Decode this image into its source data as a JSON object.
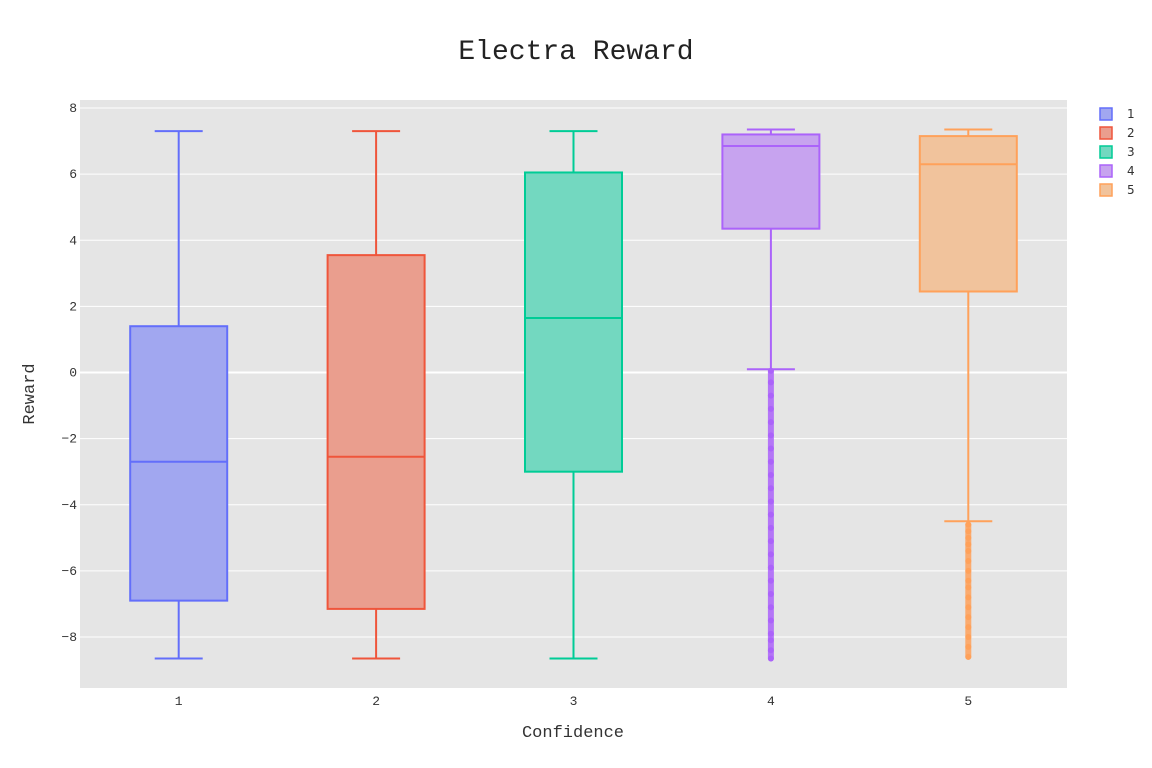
{
  "chart_data": {
    "type": "box",
    "title": "Electra Reward",
    "xlabel": "Confidence",
    "ylabel": "Reward",
    "ylim": [
      -9.5,
      8.2
    ],
    "yticks": [
      8,
      6,
      4,
      2,
      0,
      -2,
      -4,
      -6,
      -8
    ],
    "ytick_labels": [
      "8",
      "6",
      "4",
      "2",
      "0",
      "−2",
      "−4",
      "−6",
      "−8"
    ],
    "categories": [
      "1",
      "2",
      "3",
      "4",
      "5"
    ],
    "grid": true,
    "legend_position": "top-right",
    "series": [
      {
        "name": "1",
        "color": "#636efa",
        "fill": "#a1a7f0",
        "whisker_low": -8.65,
        "q1": -6.9,
        "median": -2.7,
        "q3": 1.4,
        "whisker_high": 7.3,
        "outliers": []
      },
      {
        "name": "2",
        "color": "#ef553b",
        "fill": "#ea9e8e",
        "whisker_low": -8.65,
        "q1": -7.15,
        "median": -2.55,
        "q3": 3.55,
        "whisker_high": 7.3,
        "outliers": []
      },
      {
        "name": "3",
        "color": "#00cc96",
        "fill": "#73d8c0",
        "whisker_low": -8.65,
        "q1": -3.0,
        "median": 1.65,
        "q3": 6.05,
        "whisker_high": 7.3,
        "outliers": []
      },
      {
        "name": "4",
        "color": "#ab63fa",
        "fill": "#c7a3ef",
        "whisker_low": 0.1,
        "q1": 4.35,
        "median": 6.85,
        "q3": 7.2,
        "whisker_high": 7.35,
        "outliers": [
          0.05,
          -0.3,
          -0.7,
          -1.1,
          -1.5,
          -1.9,
          -2.3,
          -2.7,
          -3.1,
          -3.5,
          -3.9,
          -4.3,
          -4.7,
          -5.1,
          -5.5,
          -5.9,
          -6.3,
          -6.7,
          -7.1,
          -7.5,
          -7.9,
          -8.1,
          -8.4,
          -8.65
        ]
      },
      {
        "name": "5",
        "color": "#ffa15a",
        "fill": "#f1c39c",
        "whisker_low": -4.5,
        "q1": 2.45,
        "median": 6.3,
        "q3": 7.15,
        "whisker_high": 7.35,
        "outliers": [
          -4.6,
          -4.8,
          -5.0,
          -5.2,
          -5.4,
          -5.7,
          -6.0,
          -6.3,
          -6.5,
          -6.8,
          -7.1,
          -7.4,
          -7.7,
          -8.0,
          -8.3,
          -8.6
        ]
      }
    ]
  }
}
